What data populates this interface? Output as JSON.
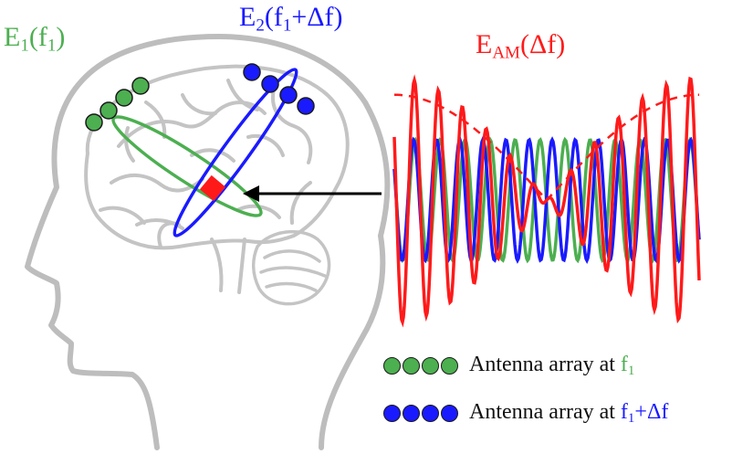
{
  "colors": {
    "green": "#4caf50",
    "blue": "#1a1aff",
    "red": "#ff1a1a",
    "outline": "#b9b9b9",
    "dot_border": "#1a1a1a"
  },
  "labels": {
    "e1": {
      "base": "E",
      "sub": "1",
      "open": "(f",
      "arg_sub": "1",
      "close": ")"
    },
    "e2": {
      "base": "E",
      "sub": "2",
      "open": "(f",
      "arg_sub": "1",
      "rest": "+Δf)"
    },
    "eam": {
      "base": "E",
      "sub": "AM",
      "rest": "(Δf)"
    }
  },
  "legend": [
    {
      "text": "Antenna array at ",
      "freq": "f",
      "freq_sub": "1",
      "freq_rest": "",
      "dot_color": "#4caf50",
      "dot_count": 4
    },
    {
      "text": "Antenna array at ",
      "freq": "f",
      "freq_sub": "1",
      "freq_rest": "+Δf",
      "dot_color": "#1a1aff",
      "dot_count": 4
    }
  ],
  "icons": [
    "head-outline-icon",
    "brain-outline-icon",
    "cerebellum-icon",
    "arrow-right-icon"
  ]
}
